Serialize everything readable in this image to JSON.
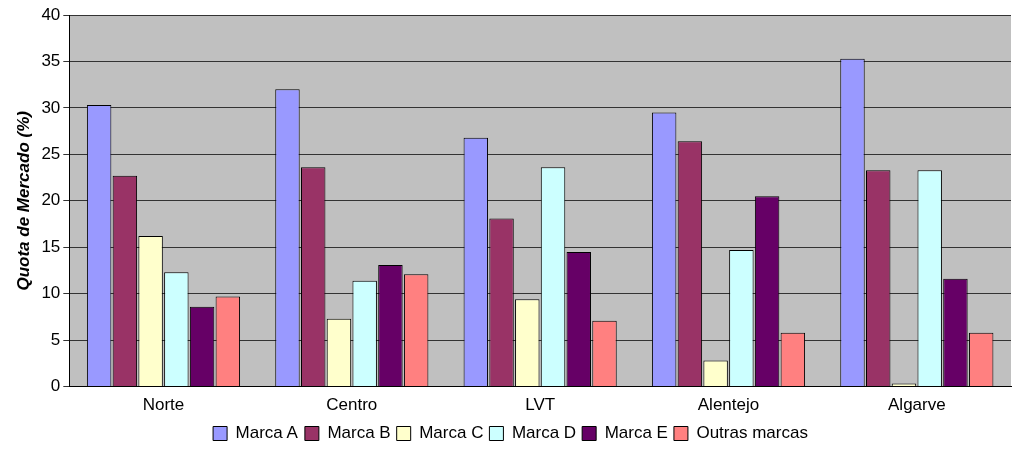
{
  "chart_data": {
    "type": "bar",
    "ylabel": "Quota de Mercado (%)",
    "categories": [
      "Norte",
      "Centro",
      "LVT",
      "Alentejo",
      "Algarve"
    ],
    "series": [
      {
        "name": "Marca A",
        "color": "#9999ff",
        "values": [
          30.3,
          32.0,
          26.8,
          29.5,
          35.3
        ]
      },
      {
        "name": "Marca B",
        "color": "#993366",
        "values": [
          22.7,
          23.6,
          18.1,
          26.4,
          23.3
        ]
      },
      {
        "name": "Marca C",
        "color": "#ffffcc",
        "values": [
          16.2,
          7.3,
          9.4,
          2.8,
          0.2
        ]
      },
      {
        "name": "Marca D",
        "color": "#ccffff",
        "values": [
          12.3,
          11.4,
          23.6,
          14.7,
          23.3
        ]
      },
      {
        "name": "Marca E",
        "color": "#660066",
        "values": [
          8.6,
          13.1,
          14.5,
          20.5,
          11.6
        ]
      },
      {
        "name": "Outras marcas",
        "color": "#ff8080",
        "values": [
          9.7,
          12.1,
          7.1,
          5.8,
          5.8
        ]
      }
    ],
    "ylim": [
      0,
      40
    ],
    "yticks": [
      0,
      5,
      10,
      15,
      20,
      25,
      30,
      35,
      40
    ],
    "grid": "y",
    "legend": "bottom"
  }
}
